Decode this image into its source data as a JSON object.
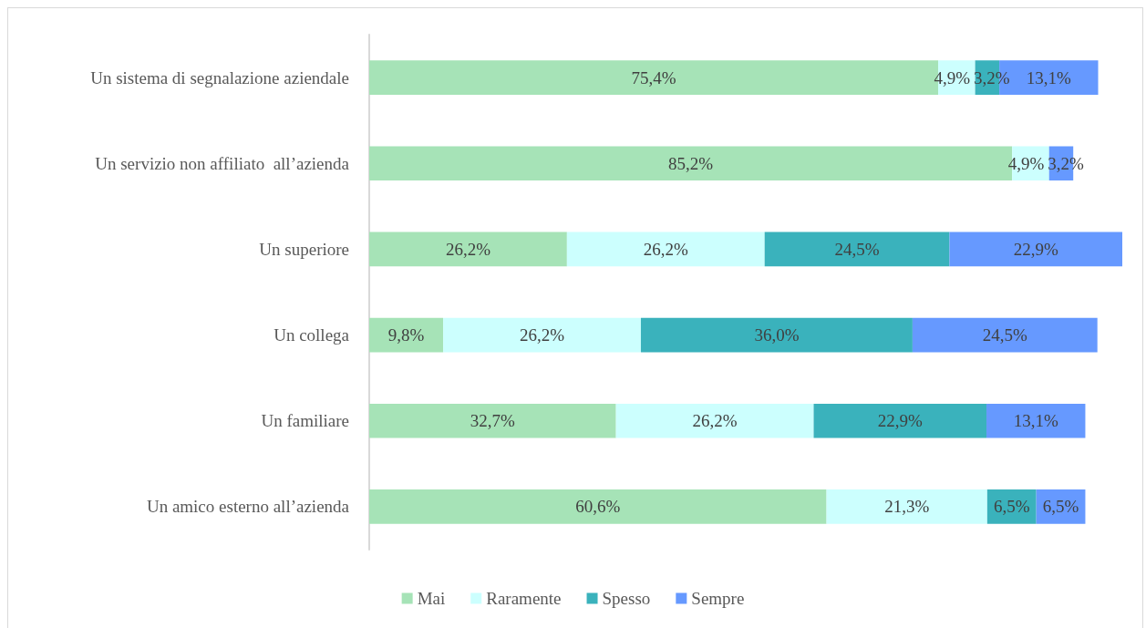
{
  "chart_data": {
    "type": "bar",
    "orientation": "horizontal",
    "stacked": true,
    "legend": "bottom",
    "grid": false,
    "tick_labels": "y",
    "categories": [
      "Un sistema di segnalazione aziendale",
      "Un servizio non affiliato  all’azienda",
      "Un superiore",
      "Un collega",
      "Un familiare",
      "Un amico esterno all’azienda"
    ],
    "series": [
      {
        "name": "Mai",
        "color": "#a6e3b7",
        "values": [
          75.4,
          85.2,
          26.2,
          9.8,
          32.7,
          60.6
        ],
        "value_labels": [
          "75,4%",
          "85,2%",
          "26,2%",
          "9,8%",
          "32,7%",
          "60,6%"
        ]
      },
      {
        "name": "Raramente",
        "color": "#ccfffe",
        "values": [
          4.9,
          4.9,
          26.2,
          26.2,
          26.2,
          21.3
        ],
        "value_labels": [
          "4,9%",
          "4,9%",
          "26,2%",
          "26,2%",
          "26,2%",
          "21,3%"
        ]
      },
      {
        "name": "Spesso",
        "color": "#3ab2bc",
        "values": [
          3.2,
          null,
          24.5,
          36.0,
          22.9,
          6.5
        ],
        "value_labels": [
          "3,2%",
          null,
          "24,5%",
          "36,0%",
          "22,9%",
          "6,5%"
        ]
      },
      {
        "name": "Sempre",
        "color": "#6699ff",
        "values": [
          13.1,
          3.2,
          22.9,
          24.5,
          13.1,
          6.5
        ],
        "value_labels": [
          "13,1%",
          "3,2%",
          "22,9%",
          "24,5%",
          "13,1%",
          "6,5%"
        ]
      }
    ]
  }
}
